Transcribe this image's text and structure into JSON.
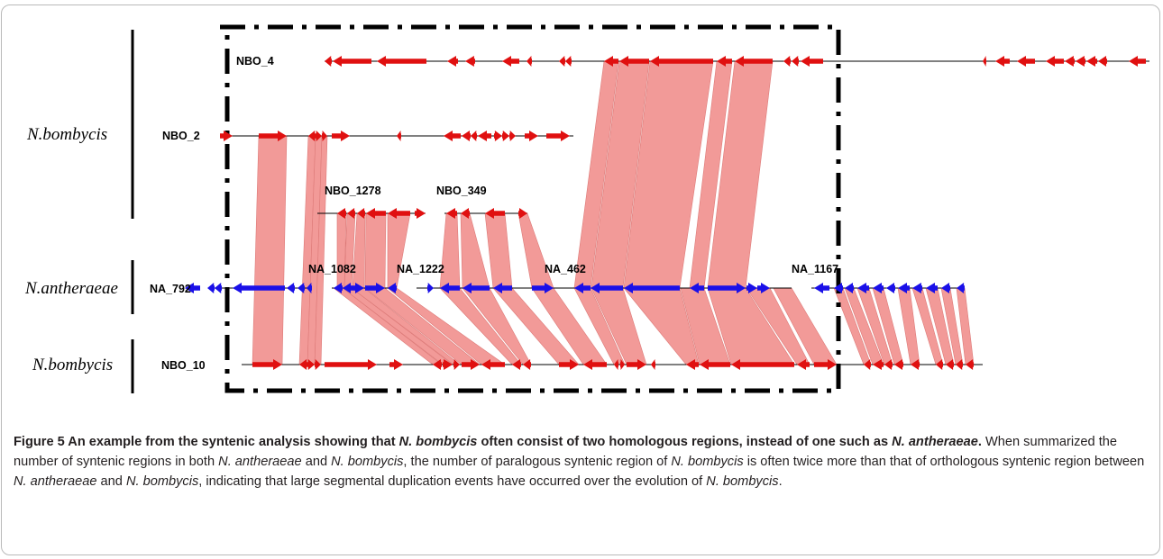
{
  "figure": {
    "species_labels": [
      "N.bombycis",
      "N.antheraeae",
      "N.bombycis"
    ],
    "contig_labels": {
      "NBO_4": "NBO_4",
      "NBO_2": "NBO_2",
      "NBO_1278": "NBO_1278",
      "NBO_349": "NBO_349",
      "NA_1082": "NA_1082",
      "NA_1222": "NA_1222",
      "NA_462": "NA_462",
      "NA_1167": "NA_1167",
      "NA_792": "NA_792",
      "NBO_10": "NBO_10"
    },
    "colors": {
      "nbo_gene": "#e01010",
      "na_gene": "#1a10e8",
      "synteny": "#f29a98",
      "synteny_edge": "#dd7a78",
      "box": "#000000"
    }
  },
  "caption": {
    "title_1": "Figure 5 An example from the syntenic analysis showing that ",
    "title_2": "N. bombycis",
    "title_3": " often consist of two homologous regions, instead of one such as ",
    "title_4": "N. antheraeae",
    "title_5": ".",
    "body_1": " When summarized the number of syntenic regions in both ",
    "body_2": "N. antheraeae",
    "body_3": " and ",
    "body_4": "N. bombycis",
    "body_5": ", the number of paralogous syntenic region of ",
    "body_6": "N. bombycis",
    "body_7": " is often twice more than that of orthologous syntenic region between ",
    "body_8": "N. antheraeae",
    "body_9": " and ",
    "body_10": "N. bombycis",
    "body_11": ", indicating that large segmental duplication events have occurred over the evolution of ",
    "body_12": "N. bombycis",
    "body_13": "."
  }
}
